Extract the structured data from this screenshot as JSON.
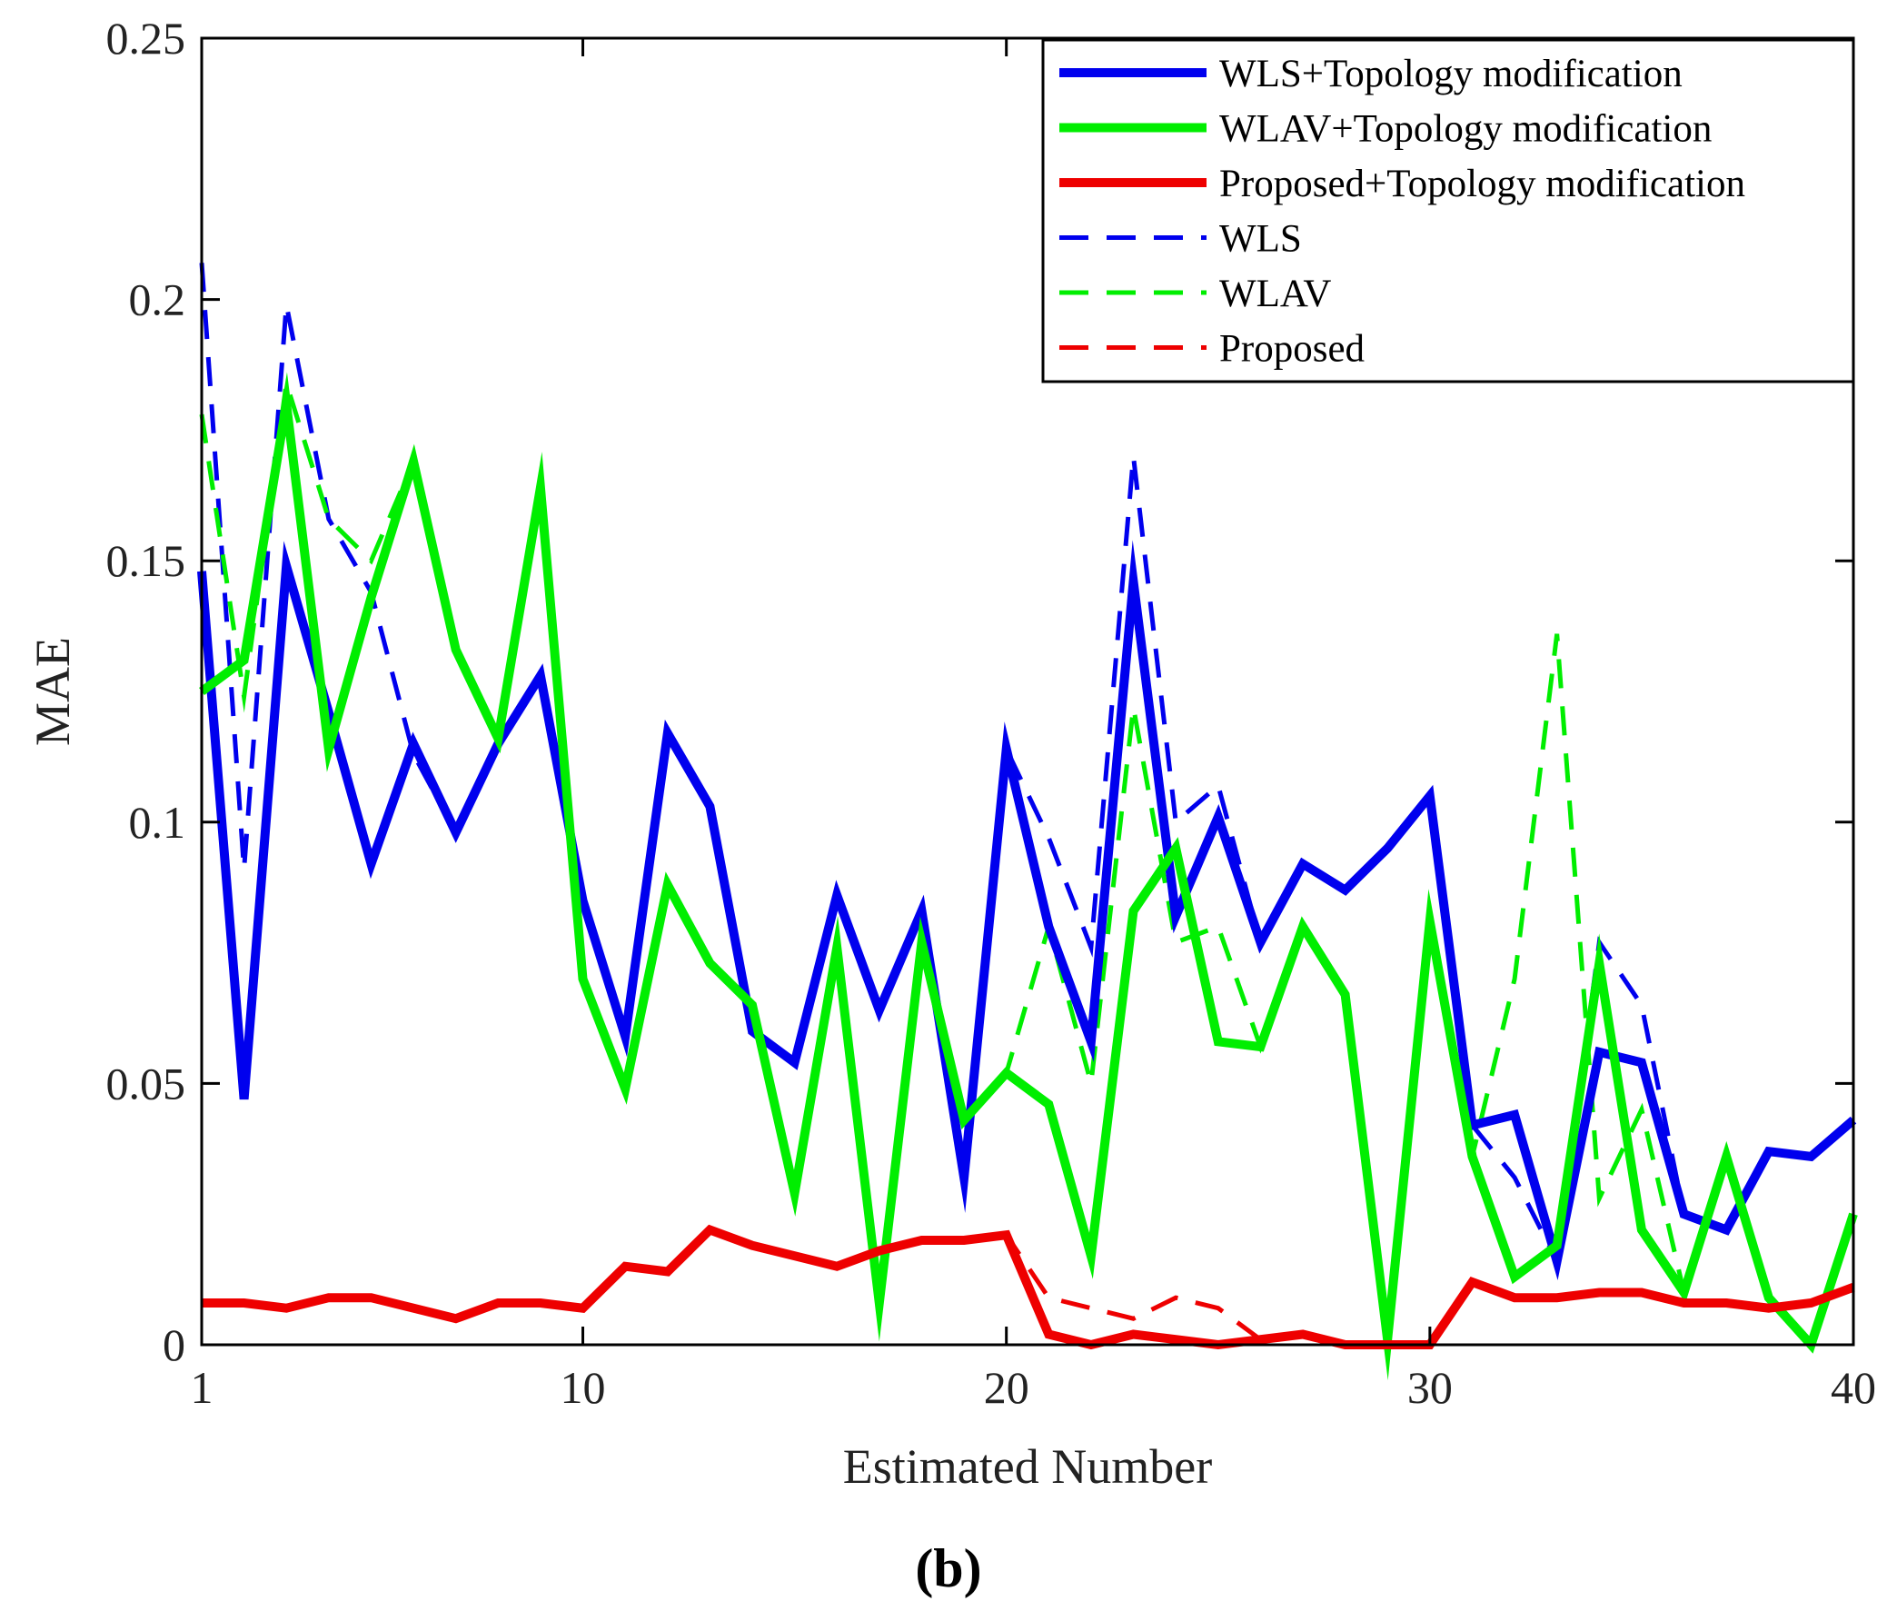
{
  "chart_data": {
    "type": "line",
    "title": "",
    "xlabel": "Estimated Number",
    "ylabel": "MAE",
    "panel_label": "(b)",
    "xlim": [
      1,
      40
    ],
    "ylim": [
      0,
      0.25
    ],
    "xticks": [
      1,
      10,
      20,
      30,
      40
    ],
    "yticks": [
      0,
      0.05,
      0.1,
      0.15,
      0.2,
      0.25
    ],
    "ytick_labels": [
      "0",
      "0.05",
      "0.1",
      "0.15",
      "0.2",
      "0.25"
    ],
    "grid": false,
    "legend_position": "top-right",
    "x": [
      1,
      2,
      3,
      4,
      5,
      6,
      7,
      8,
      9,
      10,
      11,
      12,
      13,
      14,
      15,
      16,
      17,
      18,
      19,
      20,
      21,
      22,
      23,
      24,
      25,
      26,
      27,
      28,
      29,
      30,
      31,
      32,
      33,
      34,
      35,
      36,
      37,
      38,
      39,
      40
    ],
    "series": [
      {
        "name": "WLS+Topology modification",
        "color": "#0000ee",
        "style": "solid",
        "values": [
          0.148,
          0.047,
          0.149,
          0.121,
          0.092,
          0.115,
          0.098,
          0.115,
          0.128,
          0.085,
          0.059,
          0.117,
          0.103,
          0.06,
          0.054,
          0.086,
          0.064,
          0.083,
          0.032,
          0.114,
          0.08,
          0.058,
          0.146,
          0.082,
          0.101,
          0.077,
          0.092,
          0.087,
          0.095,
          0.105,
          0.042,
          0.044,
          0.016,
          0.056,
          0.054,
          0.025,
          0.022,
          0.037,
          0.036,
          0.043
        ]
      },
      {
        "name": "WLAV+Topology modification",
        "color": "#00ee00",
        "style": "solid",
        "values": [
          0.125,
          0.131,
          0.18,
          0.114,
          0.143,
          0.169,
          0.133,
          0.116,
          0.164,
          0.07,
          0.049,
          0.088,
          0.073,
          0.065,
          0.029,
          0.076,
          0.008,
          0.077,
          0.043,
          0.052,
          0.046,
          0.017,
          0.083,
          0.095,
          0.058,
          0.057,
          0.08,
          0.067,
          0.001,
          0.081,
          0.036,
          0.013,
          0.019,
          0.073,
          0.022,
          0.01,
          0.036,
          0.009,
          0.0,
          0.025
        ]
      },
      {
        "name": "Proposed+Topology modification",
        "color": "#ee0000",
        "style": "solid",
        "values": [
          0.008,
          0.008,
          0.007,
          0.009,
          0.009,
          0.007,
          0.005,
          0.008,
          0.008,
          0.007,
          0.015,
          0.014,
          0.022,
          0.019,
          0.017,
          0.015,
          0.018,
          0.02,
          0.02,
          0.021,
          0.002,
          0.0,
          0.002,
          0.001,
          0.0,
          0.001,
          0.002,
          0.0,
          0.0,
          0.0,
          0.012,
          0.009,
          0.009,
          0.01,
          0.01,
          0.008,
          0.008,
          0.007,
          0.008,
          0.011
        ]
      },
      {
        "name": "WLS",
        "color": "#0000ee",
        "style": "dashed",
        "values": [
          0.207,
          0.091,
          0.199,
          0.158,
          0.144,
          0.113,
          0.098,
          0.115,
          0.128,
          0.085,
          0.059,
          0.117,
          0.103,
          0.06,
          0.054,
          0.086,
          0.064,
          0.083,
          0.032,
          0.114,
          0.097,
          0.076,
          0.17,
          0.1,
          0.107,
          0.077,
          0.092,
          0.087,
          0.095,
          0.105,
          0.042,
          0.032,
          0.016,
          0.077,
          0.065,
          0.025,
          0.022,
          0.037,
          0.036,
          0.043
        ]
      },
      {
        "name": "WLAV",
        "color": "#00ee00",
        "style": "dashed",
        "values": [
          0.178,
          0.124,
          0.184,
          0.158,
          0.15,
          0.169,
          0.133,
          0.116,
          0.164,
          0.07,
          0.049,
          0.088,
          0.073,
          0.065,
          0.029,
          0.076,
          0.008,
          0.077,
          0.043,
          0.052,
          0.08,
          0.05,
          0.122,
          0.077,
          0.08,
          0.057,
          0.08,
          0.067,
          0.001,
          0.081,
          0.036,
          0.07,
          0.136,
          0.028,
          0.045,
          0.01,
          0.036,
          0.009,
          0.0,
          0.025
        ]
      },
      {
        "name": "Proposed",
        "color": "#ee0000",
        "style": "dashed",
        "values": [
          0.008,
          0.008,
          0.007,
          0.009,
          0.009,
          0.007,
          0.005,
          0.008,
          0.008,
          0.007,
          0.015,
          0.014,
          0.022,
          0.019,
          0.017,
          0.015,
          0.018,
          0.02,
          0.02,
          0.021,
          0.009,
          0.007,
          0.005,
          0.009,
          0.007,
          0.001,
          0.002,
          0.0,
          0.0,
          0.0,
          0.012,
          0.009,
          0.009,
          0.01,
          0.01,
          0.008,
          0.008,
          0.007,
          0.008,
          0.011
        ]
      }
    ]
  }
}
